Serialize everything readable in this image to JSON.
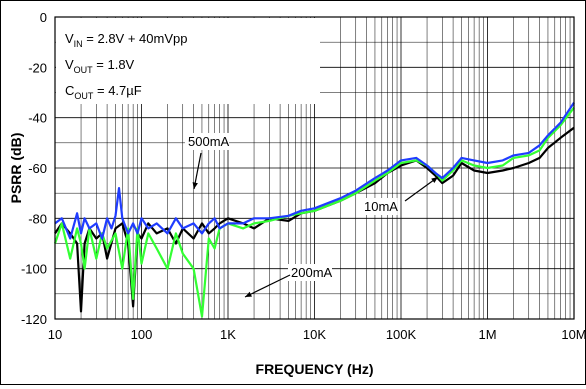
{
  "chart_data": {
    "type": "line",
    "title": "",
    "xlabel": "FREQUENCY (Hz)",
    "ylabel": "PSRR (dB)",
    "x_scale": "log",
    "xlim": [
      10,
      10000000
    ],
    "ylim": [
      -120,
      0
    ],
    "grid": true,
    "x_ticks": [
      {
        "value": 10,
        "label": "10"
      },
      {
        "value": 100,
        "label": "100"
      },
      {
        "value": 1000,
        "label": "1K"
      },
      {
        "value": 10000,
        "label": "10K"
      },
      {
        "value": 100000,
        "label": "100K"
      },
      {
        "value": 1000000,
        "label": "1M"
      },
      {
        "value": 10000000,
        "label": "10M"
      }
    ],
    "y_ticks": [
      {
        "value": 0,
        "label": "0"
      },
      {
        "value": -20,
        "label": "-20"
      },
      {
        "value": -40,
        "label": "-40"
      },
      {
        "value": -60,
        "label": "-60"
      },
      {
        "value": -80,
        "label": "-80"
      },
      {
        "value": -100,
        "label": "-100"
      },
      {
        "value": -120,
        "label": "-120"
      }
    ],
    "conditions": [
      {
        "sym": "V",
        "sub": "IN",
        "rest": " = 2.8V + 40mVpp"
      },
      {
        "sym": "V",
        "sub": "OUT",
        "rest": " = 1.8V"
      },
      {
        "sym": "C",
        "sub": "OUT",
        "rest": " = 4.7µF"
      }
    ],
    "series": [
      {
        "name": "10mA",
        "color": "#000000",
        "x": [
          10,
          12,
          15,
          18,
          20,
          22,
          25,
          30,
          35,
          40,
          50,
          60,
          70,
          80,
          90,
          100,
          120,
          150,
          200,
          250,
          300,
          400,
          500,
          600,
          700,
          800,
          1000,
          1500,
          2000,
          3000,
          5000,
          7000,
          10000,
          20000,
          30000,
          50000,
          70000,
          100000,
          150000,
          200000,
          250000,
          300000,
          400000,
          500000,
          700000,
          1000000,
          1500000,
          2000000,
          3000000,
          4000000,
          5000000,
          7000000,
          10000000
        ],
        "y": [
          -86,
          -82,
          -86,
          -90,
          -117,
          -90,
          -84,
          -88,
          -86,
          -96,
          -84,
          -82,
          -90,
          -115,
          -86,
          -88,
          -82,
          -86,
          -84,
          -90,
          -84,
          -88,
          -82,
          -86,
          -84,
          -82,
          -80,
          -82,
          -84,
          -80,
          -81,
          -78,
          -77,
          -73,
          -70,
          -66,
          -62,
          -59,
          -57,
          -60,
          -63,
          -66,
          -63,
          -58,
          -61,
          -62,
          -61,
          -60,
          -58,
          -56,
          -52,
          -48,
          -44
        ]
      },
      {
        "name": "200mA",
        "color": "#33ff33",
        "x": [
          10,
          12,
          15,
          18,
          20,
          22,
          25,
          30,
          35,
          40,
          50,
          60,
          70,
          80,
          90,
          100,
          120,
          150,
          200,
          250,
          300,
          400,
          500,
          600,
          700,
          800,
          1000,
          1500,
          2000,
          3000,
          5000,
          7000,
          10000,
          20000,
          30000,
          50000,
          70000,
          100000,
          150000,
          200000,
          250000,
          300000,
          400000,
          500000,
          700000,
          1000000,
          1500000,
          2000000,
          3000000,
          4000000,
          5000000,
          7000000,
          10000000
        ],
        "y": [
          -90,
          -82,
          -96,
          -84,
          -90,
          -100,
          -84,
          -96,
          -86,
          -92,
          -86,
          -100,
          -84,
          -112,
          -84,
          -98,
          -86,
          -92,
          -100,
          -86,
          -94,
          -100,
          -119,
          -88,
          -92,
          -84,
          -82,
          -84,
          -82,
          -81,
          -79,
          -78,
          -77,
          -73,
          -70,
          -65,
          -62,
          -58,
          -57,
          -59,
          -62,
          -65,
          -61,
          -57,
          -59,
          -60,
          -59,
          -56,
          -55,
          -53,
          -48,
          -43,
          -36
        ]
      },
      {
        "name": "500mA",
        "color": "#1f3cff",
        "x": [
          10,
          12,
          15,
          18,
          20,
          22,
          25,
          30,
          35,
          40,
          45,
          50,
          55,
          60,
          70,
          80,
          90,
          100,
          120,
          150,
          200,
          250,
          300,
          400,
          500,
          600,
          700,
          800,
          1000,
          1500,
          2000,
          3000,
          5000,
          7000,
          10000,
          20000,
          30000,
          50000,
          70000,
          100000,
          150000,
          200000,
          250000,
          300000,
          400000,
          500000,
          700000,
          1000000,
          1500000,
          2000000,
          3000000,
          4000000,
          5000000,
          7000000,
          10000000
        ],
        "y": [
          -82,
          -80,
          -88,
          -78,
          -86,
          -80,
          -84,
          -82,
          -88,
          -80,
          -84,
          -79,
          -68,
          -80,
          -86,
          -82,
          -86,
          -80,
          -84,
          -82,
          -86,
          -80,
          -84,
          -82,
          -86,
          -82,
          -80,
          -84,
          -82,
          -82,
          -80,
          -80,
          -79,
          -77,
          -76,
          -72,
          -69,
          -64,
          -61,
          -57,
          -56,
          -59,
          -62,
          -64,
          -60,
          -56,
          -57,
          -58,
          -57,
          -55,
          -54,
          -51,
          -47,
          -42,
          -34
        ]
      }
    ],
    "annotations": [
      {
        "text": "500mA",
        "series": "500mA"
      },
      {
        "text": "10mA",
        "series": "10mA"
      },
      {
        "text": "200mA",
        "series": "200mA"
      }
    ]
  }
}
